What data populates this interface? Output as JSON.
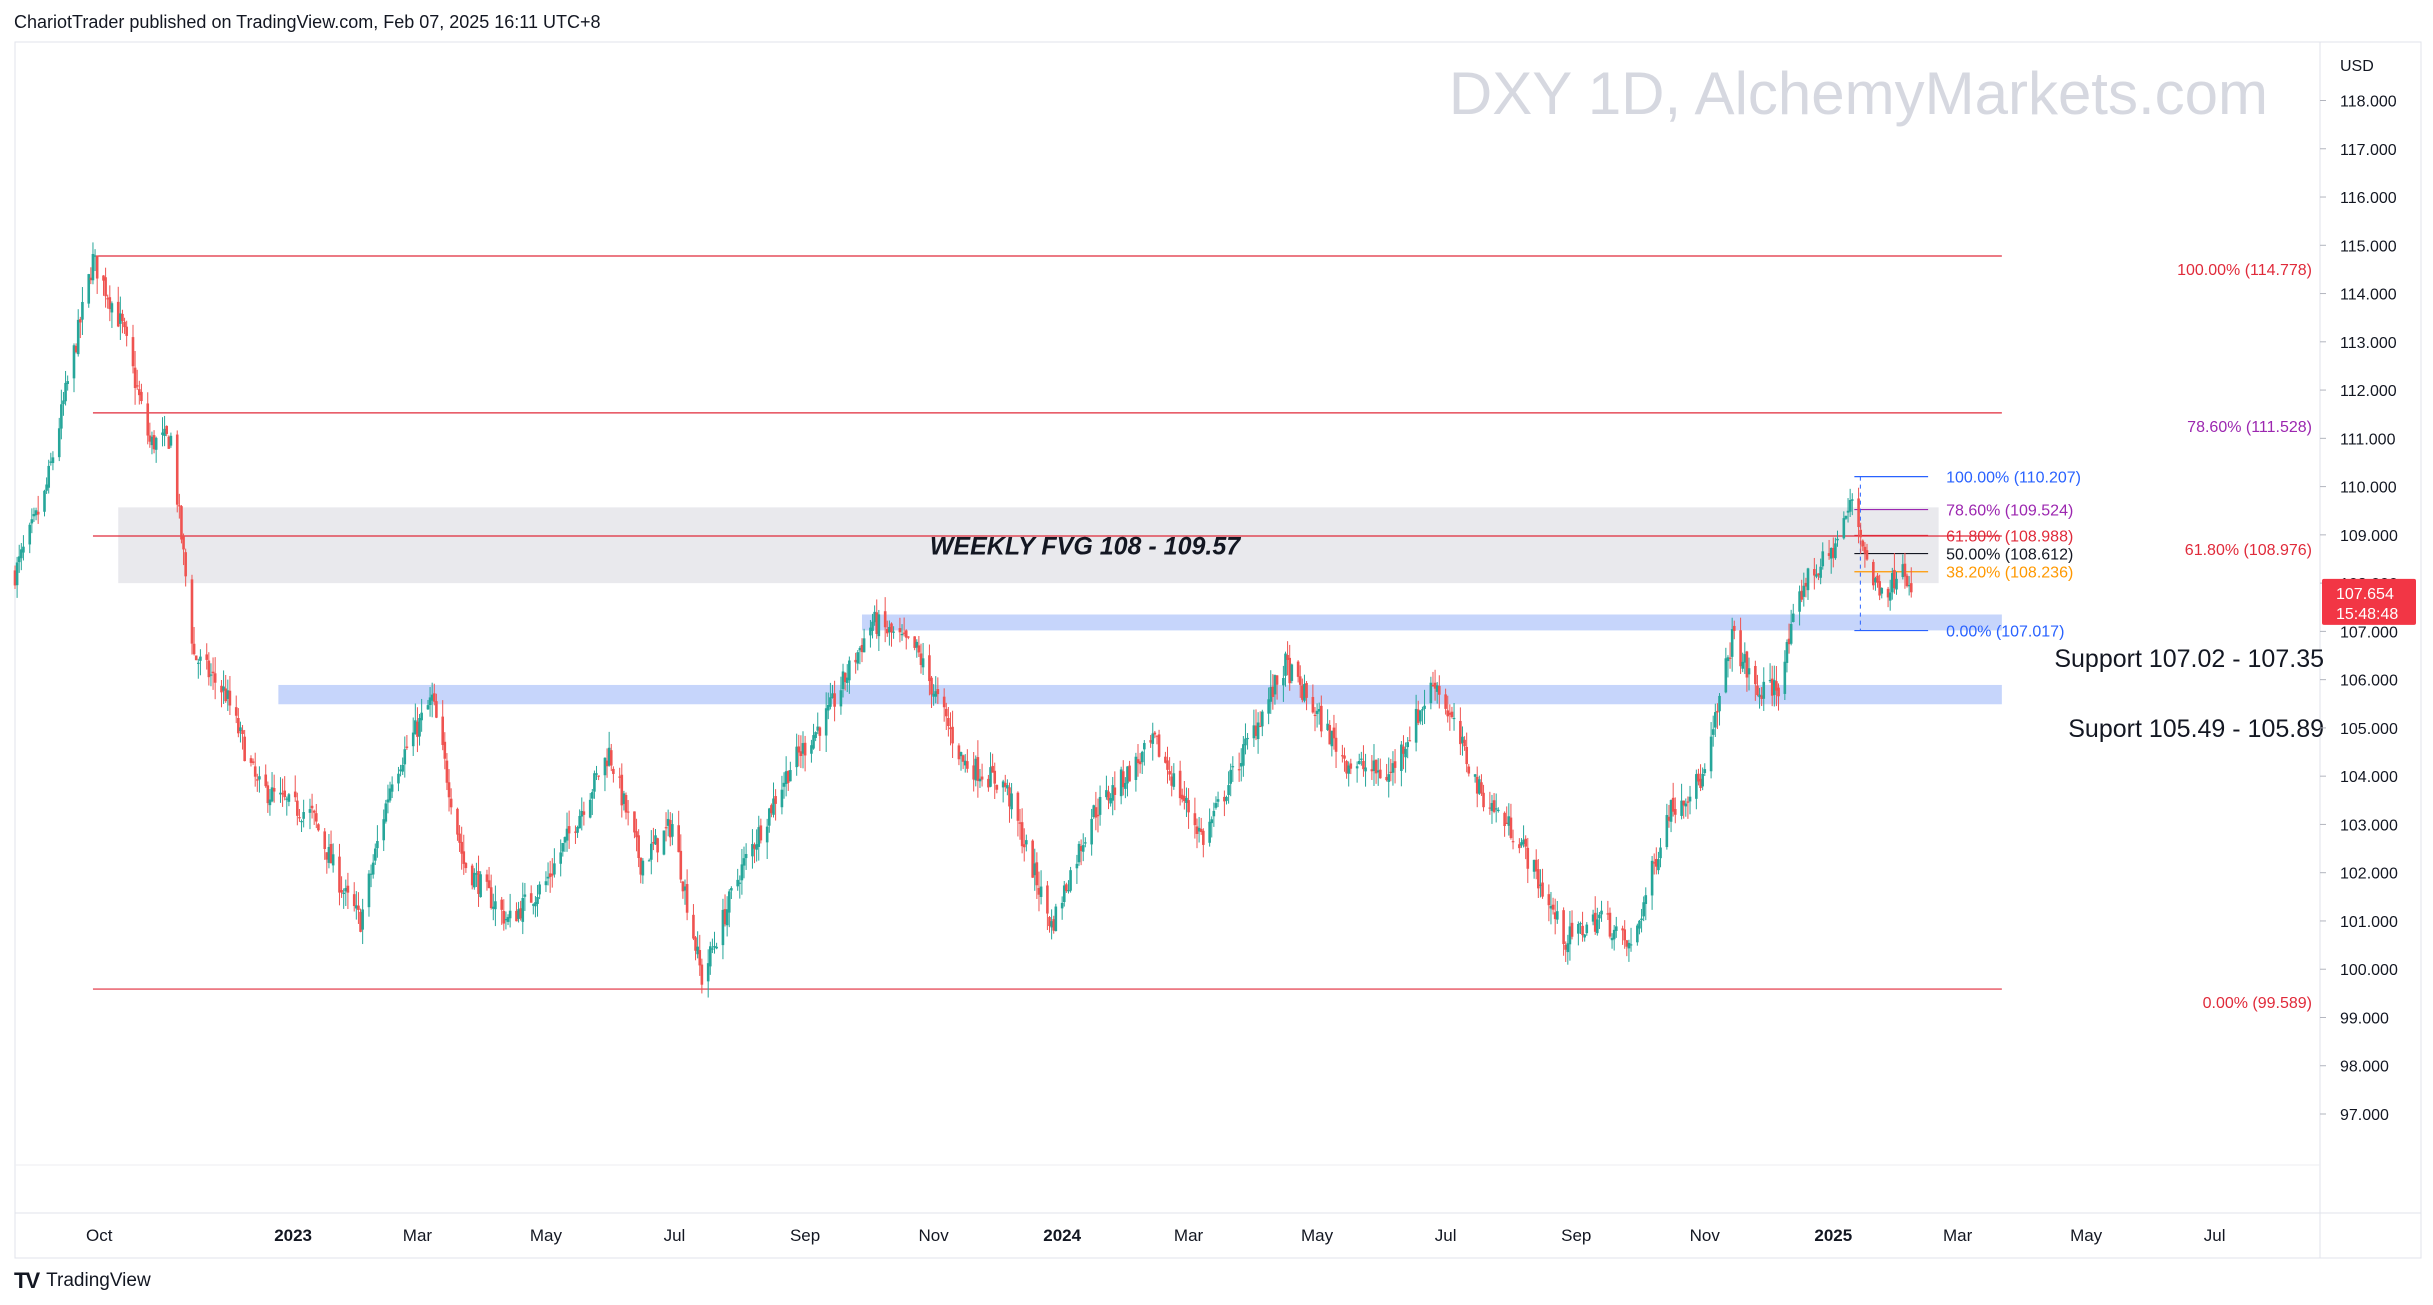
{
  "header": {
    "publisher": "ChariotTrader published on TradingView.com, Feb 07, 2025 16:11 UTC+8",
    "watermark": "DXY 1D, AlchemyMarkets.com",
    "currency": "USD"
  },
  "footer": {
    "logo_mark": "TV",
    "brand": "TradingView"
  },
  "colors": {
    "up": "#26a69a",
    "down": "#ef5350",
    "zone_support": "#c3d3fb",
    "zone_fvg": "#e5e5ea",
    "fib_red": "#e02a3a",
    "fib_blue": "#2962ff",
    "fib_purple": "#9c27b0",
    "fib_orange": "#ff9800",
    "price_badge": "#f23645"
  },
  "chart_data": {
    "type": "candlestick",
    "symbol": "DXY",
    "interval": "1D",
    "ylim": [
      96.0,
      119.0
    ],
    "y_ticks": [
      "118.000",
      "117.000",
      "116.000",
      "115.000",
      "114.000",
      "113.000",
      "112.000",
      "111.000",
      "110.000",
      "109.000",
      "108.000",
      "107.000",
      "106.000",
      "105.000",
      "104.000",
      "103.000",
      "102.000",
      "101.000",
      "100.000",
      "99.000",
      "98.000",
      "97.000"
    ],
    "y_tick_values": [
      118,
      117,
      116,
      115,
      114,
      113,
      112,
      111,
      110,
      109,
      108,
      107,
      106,
      105,
      104,
      103,
      102,
      101,
      100,
      99,
      98,
      97
    ],
    "x_ticks": [
      {
        "label": "Oct",
        "date": "2022-10-01",
        "bold": false
      },
      {
        "label": "2023",
        "date": "2023-01-01",
        "bold": true
      },
      {
        "label": "Mar",
        "date": "2023-03-01",
        "bold": false
      },
      {
        "label": "May",
        "date": "2023-05-01",
        "bold": false
      },
      {
        "label": "Jul",
        "date": "2023-07-01",
        "bold": false
      },
      {
        "label": "Sep",
        "date": "2023-09-01",
        "bold": false
      },
      {
        "label": "Nov",
        "date": "2023-11-01",
        "bold": false
      },
      {
        "label": "2024",
        "date": "2024-01-01",
        "bold": true
      },
      {
        "label": "Mar",
        "date": "2024-03-01",
        "bold": false
      },
      {
        "label": "May",
        "date": "2024-05-01",
        "bold": false
      },
      {
        "label": "Jul",
        "date": "2024-07-01",
        "bold": false
      },
      {
        "label": "Sep",
        "date": "2024-09-01",
        "bold": false
      },
      {
        "label": "Nov",
        "date": "2024-11-01",
        "bold": false
      },
      {
        "label": "2025",
        "date": "2025-01-01",
        "bold": true
      },
      {
        "label": "Mar",
        "date": "2025-03-01",
        "bold": false
      },
      {
        "label": "May",
        "date": "2025-05-01",
        "bold": false
      },
      {
        "label": "Jul",
        "date": "2025-07-01",
        "bold": false
      }
    ],
    "x_range": [
      "2022-08-22",
      "2025-08-20"
    ],
    "close_path": [
      [
        "2022-08-22",
        108.2
      ],
      [
        "2022-09-05",
        109.8
      ],
      [
        "2022-09-28",
        114.7
      ],
      [
        "2022-10-12",
        113.3
      ],
      [
        "2022-10-25",
        110.9
      ],
      [
        "2022-11-04",
        111.0
      ],
      [
        "2022-11-15",
        106.5
      ],
      [
        "2022-11-30",
        105.7
      ],
      [
        "2022-12-15",
        103.8
      ],
      [
        "2022-12-30",
        103.4
      ],
      [
        "2023-01-10",
        103.2
      ],
      [
        "2023-01-26",
        101.5
      ],
      [
        "2023-02-02",
        101.0
      ],
      [
        "2023-02-17",
        104.0
      ],
      [
        "2023-03-08",
        105.6
      ],
      [
        "2023-03-23",
        102.2
      ],
      [
        "2023-04-13",
        101.0
      ],
      [
        "2023-05-01",
        101.8
      ],
      [
        "2023-05-31",
        104.5
      ],
      [
        "2023-06-15",
        102.2
      ],
      [
        "2023-06-30",
        103.0
      ],
      [
        "2023-07-14",
        99.8
      ],
      [
        "2023-08-01",
        102.0
      ],
      [
        "2023-08-25",
        104.2
      ],
      [
        "2023-09-12",
        105.3
      ],
      [
        "2023-10-03",
        107.2
      ],
      [
        "2023-10-24",
        106.6
      ],
      [
        "2023-11-15",
        104.3
      ],
      [
        "2023-12-05",
        103.8
      ],
      [
        "2023-12-27",
        100.9
      ],
      [
        "2024-01-15",
        103.2
      ],
      [
        "2024-02-14",
        104.7
      ],
      [
        "2024-03-08",
        102.7
      ],
      [
        "2024-03-28",
        104.6
      ],
      [
        "2024-04-16",
        106.3
      ],
      [
        "2024-05-15",
        104.3
      ],
      [
        "2024-06-04",
        104.0
      ],
      [
        "2024-06-26",
        106.0
      ],
      [
        "2024-07-17",
        103.7
      ],
      [
        "2024-08-05",
        102.7
      ],
      [
        "2024-08-27",
        100.6
      ],
      [
        "2024-09-13",
        101.1
      ],
      [
        "2024-09-27",
        100.4
      ],
      [
        "2024-10-15",
        103.3
      ],
      [
        "2024-11-01",
        104.0
      ],
      [
        "2024-11-14",
        106.9
      ],
      [
        "2024-11-26",
        105.7
      ],
      [
        "2024-12-06",
        105.9
      ],
      [
        "2024-12-18",
        108.0
      ],
      [
        "2024-12-31",
        108.6
      ],
      [
        "2025-01-10",
        109.7
      ],
      [
        "2025-01-20",
        108.0
      ],
      [
        "2025-01-28",
        107.9
      ],
      [
        "2025-02-03",
        108.6
      ],
      [
        "2025-02-07",
        107.654
      ]
    ],
    "last_price": "107.654",
    "countdown": "15:48:48",
    "zones": [
      {
        "name": "weekly-fvg",
        "label": "WEEKLY FVG 108 - 109.57",
        "low": 108.0,
        "high": 109.57,
        "x_start": "2022-10-10",
        "x_end": "2025-02-20"
      },
      {
        "name": "support-upper",
        "label": "Support 107.02 - 107.35",
        "low": 107.02,
        "high": 107.35,
        "x_start": "2023-09-28",
        "x_end": "2025-03-22"
      },
      {
        "name": "support-lower",
        "label": "Suport 105.49 - 105.89",
        "low": 105.49,
        "high": 105.89,
        "x_start": "2022-12-25",
        "x_end": "2025-03-22"
      }
    ],
    "fib_major": {
      "x_start": "2022-09-28",
      "x_end": "2025-03-22",
      "levels": [
        {
          "text": "100.00% (114.778)",
          "value": 114.778,
          "color": "#e02a3a"
        },
        {
          "text": "78.60% (111.528)",
          "value": 111.528,
          "color": "#9c27b0"
        },
        {
          "text": "61.80% (108.976)",
          "value": 108.976,
          "color": "#e02a3a"
        },
        {
          "text": "0.00% (99.589)",
          "value": 99.589,
          "color": "#e02a3a"
        }
      ]
    },
    "fib_minor": {
      "x_start": "2025-01-11",
      "x_end": "2025-02-15",
      "levels": [
        {
          "text": "100.00% (110.207)",
          "value": 110.207,
          "color": "#2962ff"
        },
        {
          "text": "78.60% (109.524)",
          "value": 109.524,
          "color": "#9c27b0"
        },
        {
          "text": "61.80% (108.988)",
          "value": 108.988,
          "color": "#e02a3a"
        },
        {
          "text": "50.00% (108.612)",
          "value": 108.612,
          "color": "#131722"
        },
        {
          "text": "38.20% (108.236)",
          "value": 108.236,
          "color": "#ff9800"
        },
        {
          "text": "0.00% (107.017)",
          "value": 107.017,
          "color": "#2962ff"
        }
      ]
    }
  }
}
